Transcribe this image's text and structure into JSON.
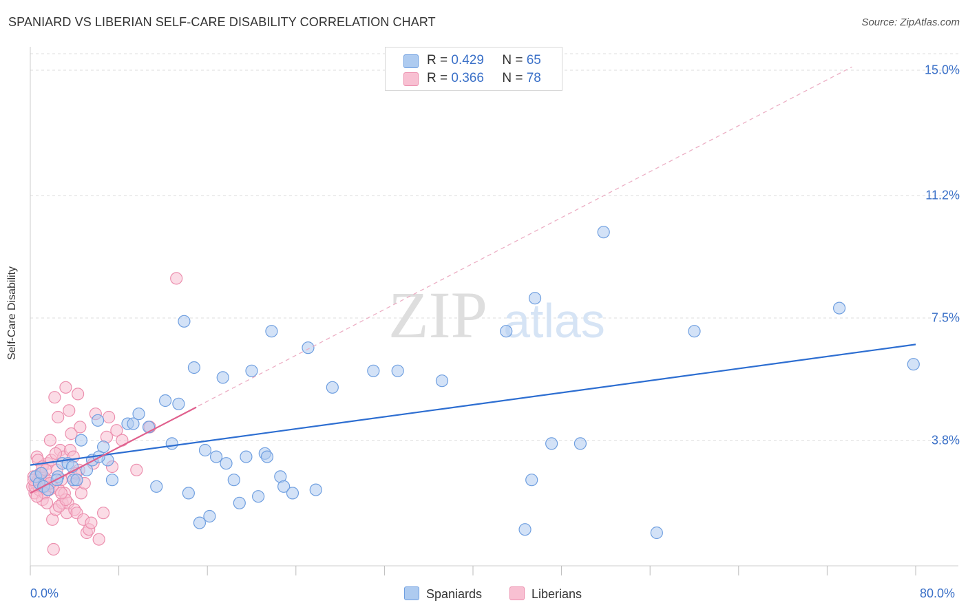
{
  "title": "SPANIARD VS LIBERIAN SELF-CARE DISABILITY CORRELATION CHART",
  "source": "Source: ZipAtlas.com",
  "watermark": {
    "zip": "ZIP",
    "atlas": "atlas"
  },
  "colors": {
    "spaniard_fill": "#aecbf0",
    "spaniard_stroke": "#6f9fe0",
    "spaniard_line": "#2d6ed1",
    "liberian_fill": "#f8c0d2",
    "liberian_stroke": "#ec8fae",
    "liberian_line": "#e0608d",
    "tick_label": "#3a70c8",
    "grid": "#dddddd"
  },
  "legend": {
    "rows": [
      {
        "r_label": "R =",
        "r_value": "0.429",
        "n_label": "N =",
        "n_value": "65",
        "series": "Spaniards"
      },
      {
        "r_label": "R =",
        "r_value": "0.366",
        "n_label": "N =",
        "n_value": "78",
        "series": "Liberians"
      }
    ]
  },
  "bottom_legend": [
    "Spaniards",
    "Liberians"
  ],
  "chart_data": {
    "type": "scatter",
    "title": "SPANIARD VS LIBERIAN SELF-CARE DISABILITY CORRELATION CHART",
    "xlabel": "",
    "ylabel": "Self-Care Disability",
    "xlim": [
      0,
      80
    ],
    "ylim": [
      0,
      15.5
    ],
    "x_tick_labels": [
      "0.0%",
      "80.0%"
    ],
    "y_ticks": [
      3.8,
      7.5,
      11.2,
      15.0
    ],
    "y_tick_labels": [
      "3.8%",
      "7.5%",
      "11.2%",
      "15.0%"
    ],
    "grid": true,
    "legend_position": "top-center",
    "series": [
      {
        "name": "Spaniards",
        "R": 0.429,
        "N": 65,
        "trend": {
          "x": [
            0,
            80
          ],
          "y": [
            3.05,
            6.7
          ]
        },
        "points": [
          [
            0.5,
            2.7
          ],
          [
            0.8,
            2.5
          ],
          [
            1.2,
            2.4
          ],
          [
            1.6,
            2.3
          ],
          [
            2.5,
            2.7
          ],
          [
            2.9,
            3.1
          ],
          [
            3.4,
            3.1
          ],
          [
            3.9,
            2.6
          ],
          [
            4.2,
            2.6
          ],
          [
            4.6,
            3.8
          ],
          [
            5.1,
            2.9
          ],
          [
            5.6,
            3.2
          ],
          [
            6.1,
            4.4
          ],
          [
            6.6,
            3.6
          ],
          [
            7.0,
            3.2
          ],
          [
            7.4,
            2.6
          ],
          [
            8.8,
            4.3
          ],
          [
            9.3,
            4.3
          ],
          [
            9.8,
            4.6
          ],
          [
            10.7,
            4.2
          ],
          [
            11.4,
            2.4
          ],
          [
            12.2,
            5.0
          ],
          [
            12.8,
            3.7
          ],
          [
            13.4,
            4.9
          ],
          [
            13.9,
            7.4
          ],
          [
            14.3,
            2.2
          ],
          [
            14.8,
            6.0
          ],
          [
            15.3,
            1.3
          ],
          [
            15.8,
            3.5
          ],
          [
            16.2,
            1.5
          ],
          [
            16.8,
            3.3
          ],
          [
            17.4,
            5.7
          ],
          [
            17.7,
            3.1
          ],
          [
            18.4,
            2.6
          ],
          [
            18.9,
            1.9
          ],
          [
            19.5,
            3.3
          ],
          [
            20.0,
            5.9
          ],
          [
            20.6,
            2.1
          ],
          [
            21.2,
            3.4
          ],
          [
            21.4,
            3.3
          ],
          [
            21.8,
            7.1
          ],
          [
            22.6,
            2.7
          ],
          [
            22.9,
            2.4
          ],
          [
            23.7,
            2.2
          ],
          [
            25.1,
            6.6
          ],
          [
            25.8,
            2.3
          ],
          [
            27.3,
            5.4
          ],
          [
            31.0,
            5.9
          ],
          [
            33.2,
            5.9
          ],
          [
            37.2,
            5.6
          ],
          [
            43.0,
            7.1
          ],
          [
            44.7,
            1.1
          ],
          [
            45.3,
            2.6
          ],
          [
            45.6,
            8.1
          ],
          [
            47.1,
            3.7
          ],
          [
            49.7,
            3.7
          ],
          [
            51.8,
            10.1
          ],
          [
            56.6,
            1.0
          ],
          [
            60.0,
            7.1
          ],
          [
            73.1,
            7.8
          ],
          [
            79.8,
            6.1
          ],
          [
            6.2,
            3.3
          ],
          [
            2.4,
            2.6
          ],
          [
            3.8,
            3.0
          ],
          [
            1.0,
            2.8
          ]
        ]
      },
      {
        "name": "Liberians",
        "R": 0.366,
        "N": 78,
        "trend": {
          "x": [
            0,
            15
          ],
          "y": [
            2.2,
            4.8
          ]
        },
        "trend_extended": {
          "x": [
            0,
            80
          ],
          "y": [
            2.2,
            16.1
          ]
        },
        "points": [
          [
            0.2,
            2.4
          ],
          [
            0.3,
            2.7
          ],
          [
            0.4,
            2.2
          ],
          [
            0.5,
            2.5
          ],
          [
            0.6,
            3.3
          ],
          [
            0.7,
            2.6
          ],
          [
            0.8,
            2.3
          ],
          [
            0.9,
            2.6
          ],
          [
            1.0,
            2.4
          ],
          [
            1.1,
            2.0
          ],
          [
            1.2,
            2.7
          ],
          [
            1.3,
            2.5
          ],
          [
            1.4,
            2.4
          ],
          [
            1.5,
            2.6
          ],
          [
            1.6,
            3.1
          ],
          [
            1.7,
            2.3
          ],
          [
            1.8,
            3.8
          ],
          [
            1.9,
            3.2
          ],
          [
            2.0,
            1.4
          ],
          [
            2.1,
            0.5
          ],
          [
            2.2,
            5.1
          ],
          [
            2.3,
            1.7
          ],
          [
            2.4,
            2.9
          ],
          [
            2.5,
            4.5
          ],
          [
            2.6,
            2.3
          ],
          [
            2.7,
            3.5
          ],
          [
            2.8,
            2.6
          ],
          [
            2.9,
            1.9
          ],
          [
            3.0,
            3.3
          ],
          [
            3.1,
            2.2
          ],
          [
            3.2,
            5.4
          ],
          [
            3.3,
            1.6
          ],
          [
            3.4,
            1.9
          ],
          [
            3.5,
            4.7
          ],
          [
            3.6,
            3.5
          ],
          [
            3.7,
            4.0
          ],
          [
            3.8,
            2.7
          ],
          [
            3.9,
            3.3
          ],
          [
            4.0,
            1.7
          ],
          [
            4.1,
            2.5
          ],
          [
            4.2,
            1.6
          ],
          [
            4.3,
            5.2
          ],
          [
            4.4,
            2.9
          ],
          [
            4.5,
            4.2
          ],
          [
            4.6,
            2.2
          ],
          [
            4.8,
            1.4
          ],
          [
            4.9,
            2.5
          ],
          [
            5.1,
            1.0
          ],
          [
            5.3,
            1.1
          ],
          [
            5.5,
            1.3
          ],
          [
            5.7,
            3.1
          ],
          [
            5.9,
            4.6
          ],
          [
            6.2,
            0.8
          ],
          [
            6.6,
            1.6
          ],
          [
            6.9,
            3.9
          ],
          [
            7.1,
            4.5
          ],
          [
            7.4,
            3.0
          ],
          [
            7.8,
            4.1
          ],
          [
            8.3,
            3.8
          ],
          [
            9.6,
            2.9
          ],
          [
            10.8,
            4.2
          ],
          [
            13.2,
            8.7
          ],
          [
            0.9,
            2.8
          ],
          [
            1.3,
            2.2
          ],
          [
            0.4,
            2.4
          ],
          [
            0.7,
            3.2
          ],
          [
            1.5,
            1.9
          ],
          [
            2.0,
            2.4
          ],
          [
            2.6,
            1.8
          ],
          [
            1.1,
            3.0
          ],
          [
            0.3,
            2.6
          ],
          [
            3.2,
            2.0
          ],
          [
            4.1,
            2.8
          ],
          [
            1.8,
            2.5
          ],
          [
            2.3,
            3.4
          ],
          [
            0.6,
            2.1
          ],
          [
            1.4,
            2.9
          ],
          [
            2.8,
            2.2
          ]
        ]
      }
    ]
  }
}
